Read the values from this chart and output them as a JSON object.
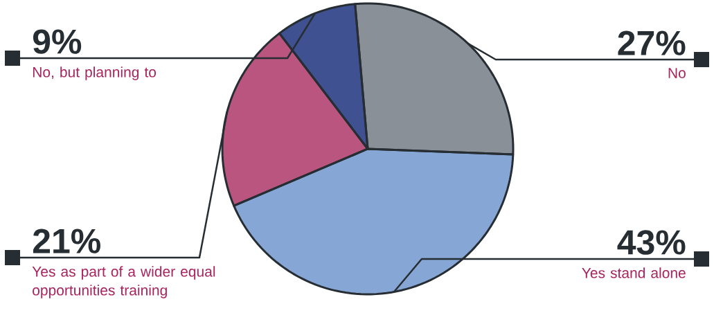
{
  "chart_data": {
    "type": "pie",
    "categories": [
      "No",
      "Yes stand alone",
      "Yes as part of a wider equal opportunities training",
      "No, but planning to"
    ],
    "values": [
      27,
      43,
      21,
      9
    ],
    "value_labels": [
      "27%",
      "43%",
      "21%",
      "9%"
    ],
    "colors": [
      "#8a9097",
      "#86a6d6",
      "#b9557f",
      "#3f5190"
    ]
  }
}
